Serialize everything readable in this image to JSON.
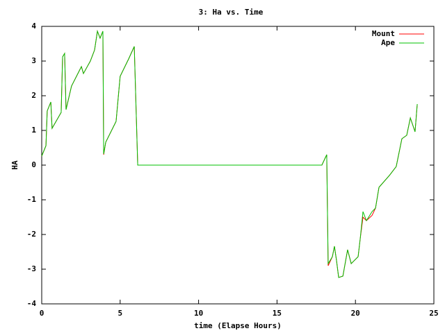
{
  "chart_data": {
    "type": "line",
    "title": "3: Ha vs. Time",
    "x_label": "time (Elapse Hours)",
    "y_label": "HA",
    "x": [
      0,
      0.27,
      0.35,
      0.58,
      0.66,
      1.24,
      1.33,
      1.46,
      1.55,
      1.9,
      2.53,
      2.66,
      3.1,
      3.37,
      3.55,
      3.72,
      3.9,
      3.95,
      4.08,
      4.74,
      5.0,
      5.54,
      5.9,
      6.12,
      17.86,
      18.17,
      18.26,
      18.53,
      18.66,
      18.79,
      18.93,
      19.2,
      19.5,
      19.73,
      20.17,
      20.3,
      20.48,
      20.7,
      21.06,
      21.28,
      21.5,
      22.16,
      22.6,
      22.96,
      23.27,
      23.5,
      23.8,
      23.94
    ],
    "series": [
      {
        "name": "Mount",
        "color": "#ff0000",
        "values": [
          0.26,
          0.56,
          1.56,
          1.82,
          1.06,
          1.52,
          3.12,
          3.22,
          1.6,
          2.28,
          2.84,
          2.64,
          3.0,
          3.32,
          3.86,
          3.66,
          3.86,
          0.3,
          0.66,
          1.26,
          2.56,
          3.06,
          3.42,
          0,
          0,
          0.3,
          -2.9,
          -2.64,
          -2.34,
          -2.74,
          -3.24,
          -3.2,
          -2.44,
          -2.84,
          -2.64,
          -2.14,
          -1.5,
          -1.6,
          -1.45,
          -1.24,
          -0.64,
          -0.3,
          -0.04,
          0.76,
          0.86,
          1.36,
          0.96,
          1.76
        ]
      },
      {
        "name": "Ape",
        "color": "#00c000",
        "values": [
          0.26,
          0.56,
          1.56,
          1.82,
          1.06,
          1.52,
          3.12,
          3.22,
          1.6,
          2.28,
          2.84,
          2.64,
          3.0,
          3.32,
          3.86,
          3.66,
          3.86,
          0.32,
          0.66,
          1.26,
          2.56,
          3.06,
          3.42,
          0,
          0,
          0.3,
          -2.84,
          -2.64,
          -2.34,
          -2.74,
          -3.24,
          -3.2,
          -2.44,
          -2.84,
          -2.64,
          -2.14,
          -1.34,
          -1.6,
          -1.34,
          -1.24,
          -0.64,
          -0.3,
          -0.04,
          0.76,
          0.86,
          1.36,
          0.96,
          1.76
        ]
      }
    ],
    "xlim": [
      0,
      25
    ],
    "xticks": [
      0,
      5,
      10,
      15,
      20,
      25
    ],
    "ylim": [
      -4,
      4
    ],
    "yticks": [
      -4,
      -3,
      -2,
      -1,
      0,
      1,
      2,
      3,
      4
    ],
    "grid": false,
    "legend": "top-right"
  }
}
